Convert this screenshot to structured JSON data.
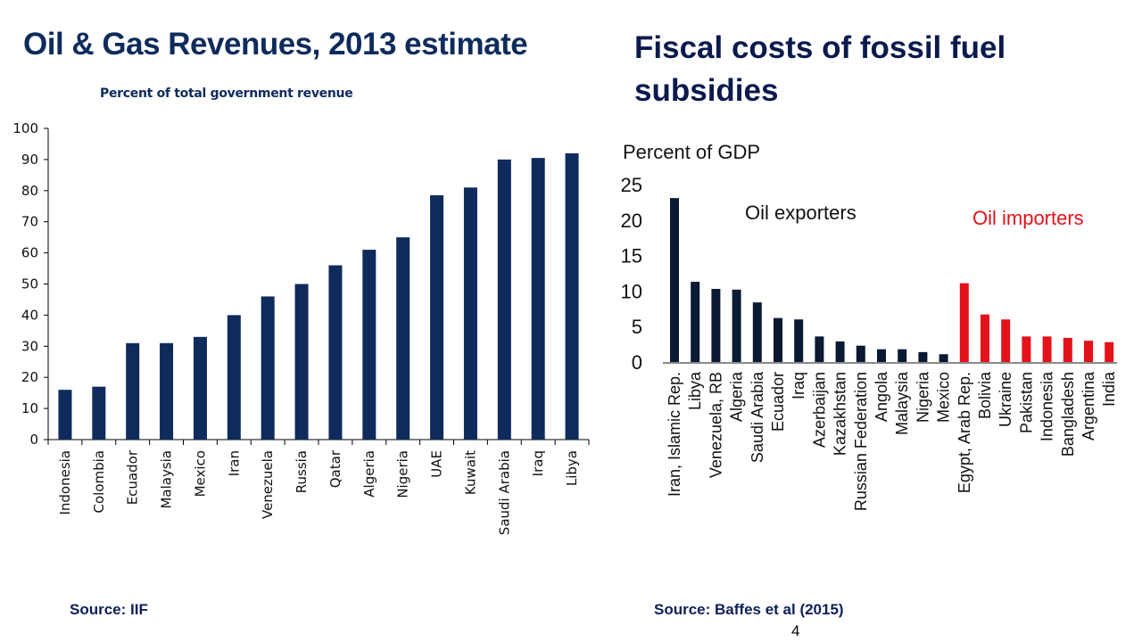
{
  "slide": {
    "page_number": "4",
    "left": {
      "title": "Oil & Gas Revenues, 2013 estimate",
      "subtitle": "Percent of total government revenue",
      "source": "Source: IIF"
    },
    "right": {
      "title": "Fiscal costs of fossil fuel subsidies",
      "source": "Source: Baffes et al (2015)"
    }
  },
  "colors": {
    "left_bar": "#0e2b5c",
    "exporter_bar": "#0a1a33",
    "importer_bar": "#e3121b",
    "title": "#0e2b5c"
  },
  "chart_data": [
    {
      "type": "bar",
      "title": "Oil & Gas Revenues, 2013 estimate",
      "subtitle": "Percent of total government revenue",
      "xlabel": "",
      "ylabel": "",
      "ylim": [
        0,
        100
      ],
      "yticks": [
        0,
        10,
        20,
        30,
        40,
        50,
        60,
        70,
        80,
        90,
        100
      ],
      "grid": false,
      "categories": [
        "Indonesia",
        "Colombia",
        "Ecuador",
        "Malaysia",
        "Mexico",
        "Iran",
        "Venezuela",
        "Russia",
        "Qatar",
        "Algeria",
        "Nigeria",
        "UAE",
        "Kuwait",
        "Saudi Arabia",
        "Iraq",
        "Libya"
      ],
      "values": [
        16,
        17,
        31,
        31,
        33,
        40,
        46,
        50,
        56,
        61,
        65,
        78.5,
        81,
        90,
        90.5,
        92
      ]
    },
    {
      "type": "bar",
      "title": "Fiscal costs of fossil fuel subsidies",
      "xlabel": "",
      "ylabel": "Percent of GDP",
      "ylim": [
        0,
        25
      ],
      "yticks": [
        0,
        5,
        10,
        15,
        20,
        25
      ],
      "grid": false,
      "annotations": [
        {
          "text": "Oil exporters",
          "color": "#111111"
        },
        {
          "text": "Oil importers",
          "color": "#e3121b"
        }
      ],
      "series": [
        {
          "name": "Oil exporters",
          "categories": [
            "Iran, Islamic Rep.",
            "Libya",
            "Venezuela, RB",
            "Algeria",
            "Saudi Arabia",
            "Ecuador",
            "Iraq",
            "Azerbaijan",
            "Kazakhstan",
            "Russian Federation",
            "Angola",
            "Malaysia",
            "Nigeria",
            "Mexico"
          ],
          "values": [
            23.1,
            11.3,
            10.3,
            10.2,
            8.4,
            6.2,
            6.0,
            3.6,
            2.9,
            2.3,
            1.8,
            1.8,
            1.4,
            1.1
          ]
        },
        {
          "name": "Oil importers",
          "categories": [
            "Egypt, Arab Rep.",
            "Bolivia",
            "Ukraine",
            "Pakistan",
            "Indonesia",
            "Bangladesh",
            "Argentina",
            "India"
          ],
          "values": [
            11.1,
            6.7,
            6.0,
            3.6,
            3.6,
            3.4,
            3.0,
            2.8
          ]
        }
      ]
    }
  ]
}
